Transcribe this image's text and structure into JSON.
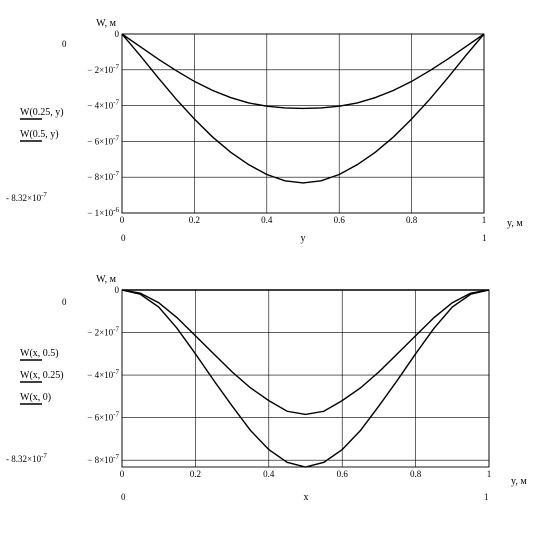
{
  "chart_data": [
    {
      "type": "line",
      "y_axis_label": "W, м",
      "x_axis_label": "y",
      "x_unit_label": "y, м",
      "x_range_start_label": "0",
      "x_range_end_label": "1",
      "y_range_top_label": "0",
      "y_range_bottom_label": "- 8.32×10",
      "y_range_bottom_exp": "-7",
      "xlim": [
        0,
        1
      ],
      "ylim": [
        -1e-06,
        0
      ],
      "x_ticks": [
        {
          "v": 0,
          "text": "0"
        },
        {
          "v": 0.2,
          "text": "0.2"
        },
        {
          "v": 0.4,
          "text": "0.4"
        },
        {
          "v": 0.6,
          "text": "0.6"
        },
        {
          "v": 0.8,
          "text": "0.8"
        },
        {
          "v": 1,
          "text": "1"
        }
      ],
      "y_ticks": [
        {
          "v": 0,
          "text": "0",
          "exp": ""
        },
        {
          "v": -2e-07,
          "text": "− 2×10",
          "exp": "-7"
        },
        {
          "v": -4e-07,
          "text": "− 4×10",
          "exp": "-7"
        },
        {
          "v": -6e-07,
          "text": "− 6×10",
          "exp": "-7"
        },
        {
          "v": -8e-07,
          "text": "− 8×10",
          "exp": "-7"
        },
        {
          "v": -1e-06,
          "text": "− 1×10",
          "exp": "-6"
        }
      ],
      "x": [
        0,
        0.05,
        0.1,
        0.15,
        0.2,
        0.25,
        0.3,
        0.35,
        0.4,
        0.45,
        0.5,
        0.55,
        0.6,
        0.65,
        0.7,
        0.75,
        0.8,
        0.85,
        0.9,
        0.95,
        1
      ],
      "series": [
        {
          "name": "W(0.25, y)",
          "values": [
            0,
            -7e-08,
            -1.4e-07,
            -2.05e-07,
            -2.65e-07,
            -3.15e-07,
            -3.55e-07,
            -3.85e-07,
            -4.03e-07,
            -4.13e-07,
            -4.16e-07,
            -4.13e-07,
            -4.03e-07,
            -3.85e-07,
            -3.55e-07,
            -3.15e-07,
            -2.65e-07,
            -2.05e-07,
            -1.4e-07,
            -7e-08,
            0
          ]
        },
        {
          "name": "W(0.5, y)",
          "values": [
            0,
            -1.2e-07,
            -2.45e-07,
            -3.65e-07,
            -4.75e-07,
            -5.75e-07,
            -6.6e-07,
            -7.3e-07,
            -7.85e-07,
            -8.2e-07,
            -8.32e-07,
            -8.2e-07,
            -7.85e-07,
            -7.3e-07,
            -6.6e-07,
            -5.75e-07,
            -4.75e-07,
            -3.65e-07,
            -2.45e-07,
            -1.2e-07,
            0
          ]
        }
      ]
    },
    {
      "type": "line",
      "y_axis_label": "W, м",
      "x_axis_label": "x",
      "x_unit_label": "y, м",
      "x_range_start_label": "0",
      "x_range_end_label": "1",
      "y_range_top_label": "0",
      "y_range_bottom_label": "- 8.32×10",
      "y_range_bottom_exp": "-7",
      "xlim": [
        0,
        1
      ],
      "ylim": [
        -8.32e-07,
        0
      ],
      "x_ticks": [
        {
          "v": 0,
          "text": "0"
        },
        {
          "v": 0.2,
          "text": "0.2"
        },
        {
          "v": 0.4,
          "text": "0.4"
        },
        {
          "v": 0.6,
          "text": "0.6"
        },
        {
          "v": 0.8,
          "text": "0.8"
        },
        {
          "v": 1,
          "text": "1"
        }
      ],
      "y_ticks": [
        {
          "v": 0,
          "text": "0",
          "exp": ""
        },
        {
          "v": -2e-07,
          "text": "− 2×10",
          "exp": "-7"
        },
        {
          "v": -4e-07,
          "text": "− 4×10",
          "exp": "-7"
        },
        {
          "v": -6e-07,
          "text": "− 6×10",
          "exp": "-7"
        },
        {
          "v": -8e-07,
          "text": "− 8×10",
          "exp": "-7"
        }
      ],
      "x": [
        0,
        0.05,
        0.1,
        0.15,
        0.2,
        0.25,
        0.3,
        0.35,
        0.4,
        0.45,
        0.5,
        0.55,
        0.6,
        0.65,
        0.7,
        0.75,
        0.8,
        0.85,
        0.9,
        0.95,
        1
      ],
      "series": [
        {
          "name": "W(x, 0.5)",
          "values": [
            0,
            -2e-08,
            -8e-08,
            -1.8e-07,
            -3e-07,
            -4.25e-07,
            -5.45e-07,
            -6.6e-07,
            -7.5e-07,
            -8.1e-07,
            -8.32e-07,
            -8.1e-07,
            -7.5e-07,
            -6.6e-07,
            -5.45e-07,
            -4.25e-07,
            -3e-07,
            -1.8e-07,
            -8e-08,
            -2e-08,
            0
          ]
        },
        {
          "name": "W(x, 0.25)",
          "values": [
            0,
            -1.5e-08,
            -6e-08,
            -1.3e-07,
            -2.15e-07,
            -3e-07,
            -3.85e-07,
            -4.6e-07,
            -5.2e-07,
            -5.7e-07,
            -5.85e-07,
            -5.7e-07,
            -5.2e-07,
            -4.6e-07,
            -3.85e-07,
            -3e-07,
            -2.15e-07,
            -1.3e-07,
            -6e-08,
            -1.5e-08,
            0
          ]
        },
        {
          "name": "W(x, 0)",
          "values": [
            0,
            0,
            0,
            0,
            0,
            0,
            0,
            0,
            0,
            0,
            0,
            0,
            0,
            0,
            0,
            0,
            0,
            0,
            0,
            0,
            0
          ]
        }
      ]
    }
  ]
}
